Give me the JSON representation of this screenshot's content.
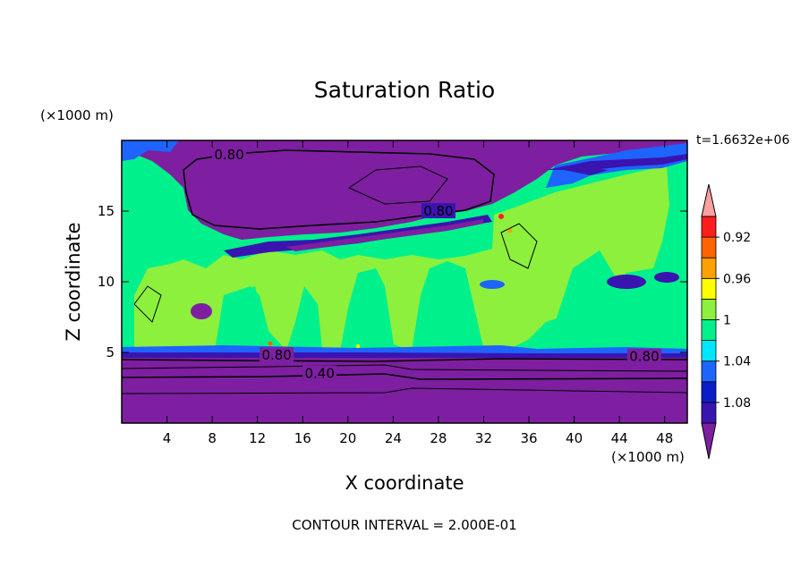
{
  "chart_data": {
    "type": "contour",
    "title": "Saturation Ratio",
    "xlabel": "X coordinate",
    "ylabel": "Z coordinate",
    "x_unit": "(×1000 m)",
    "y_unit": "(×1000 m)",
    "time_label": "t=1.6632e+06",
    "footer": "CONTOUR INTERVAL = 2.000E-01",
    "xlim": [
      0,
      50
    ],
    "ylim": [
      0,
      20
    ],
    "x_ticks": [
      4,
      8,
      12,
      16,
      20,
      24,
      28,
      32,
      36,
      40,
      44,
      48
    ],
    "y_ticks": [
      5,
      10,
      15
    ],
    "contour_labels": [
      {
        "text": "0.80",
        "x": 9.5,
        "y": 19.0
      },
      {
        "text": "0.80",
        "x": 28.0,
        "y": 15.0
      },
      {
        "text": "0.80",
        "x": 13.7,
        "y": 4.8
      },
      {
        "text": "0.80",
        "x": 46.2,
        "y": 4.7
      },
      {
        "text": "0.40",
        "x": 17.5,
        "y": 3.5
      }
    ],
    "colorbar": {
      "labels": [
        "1.08",
        "1.04",
        "1",
        "0.96",
        "0.92"
      ],
      "colors": [
        "#7d1fa0",
        "#3a14b0",
        "#0a1ec8",
        "#1e64ff",
        "#00e6ff",
        "#00f08c",
        "#8cf03c",
        "#ffff00",
        "#ffa000",
        "#ff6400",
        "#ff1e1e",
        "#ffa0a0"
      ]
    },
    "colors": {
      "low": "#7d1fa0",
      "band_0_92": "#3a14b0",
      "band_0_94": "#0a1ec8",
      "band_0_96": "#1e64ff",
      "band_0_98": "#00e6ff",
      "band_1_00": "#00f08c",
      "band_1_02": "#8cf03c",
      "high": "#ff1e1e"
    }
  }
}
